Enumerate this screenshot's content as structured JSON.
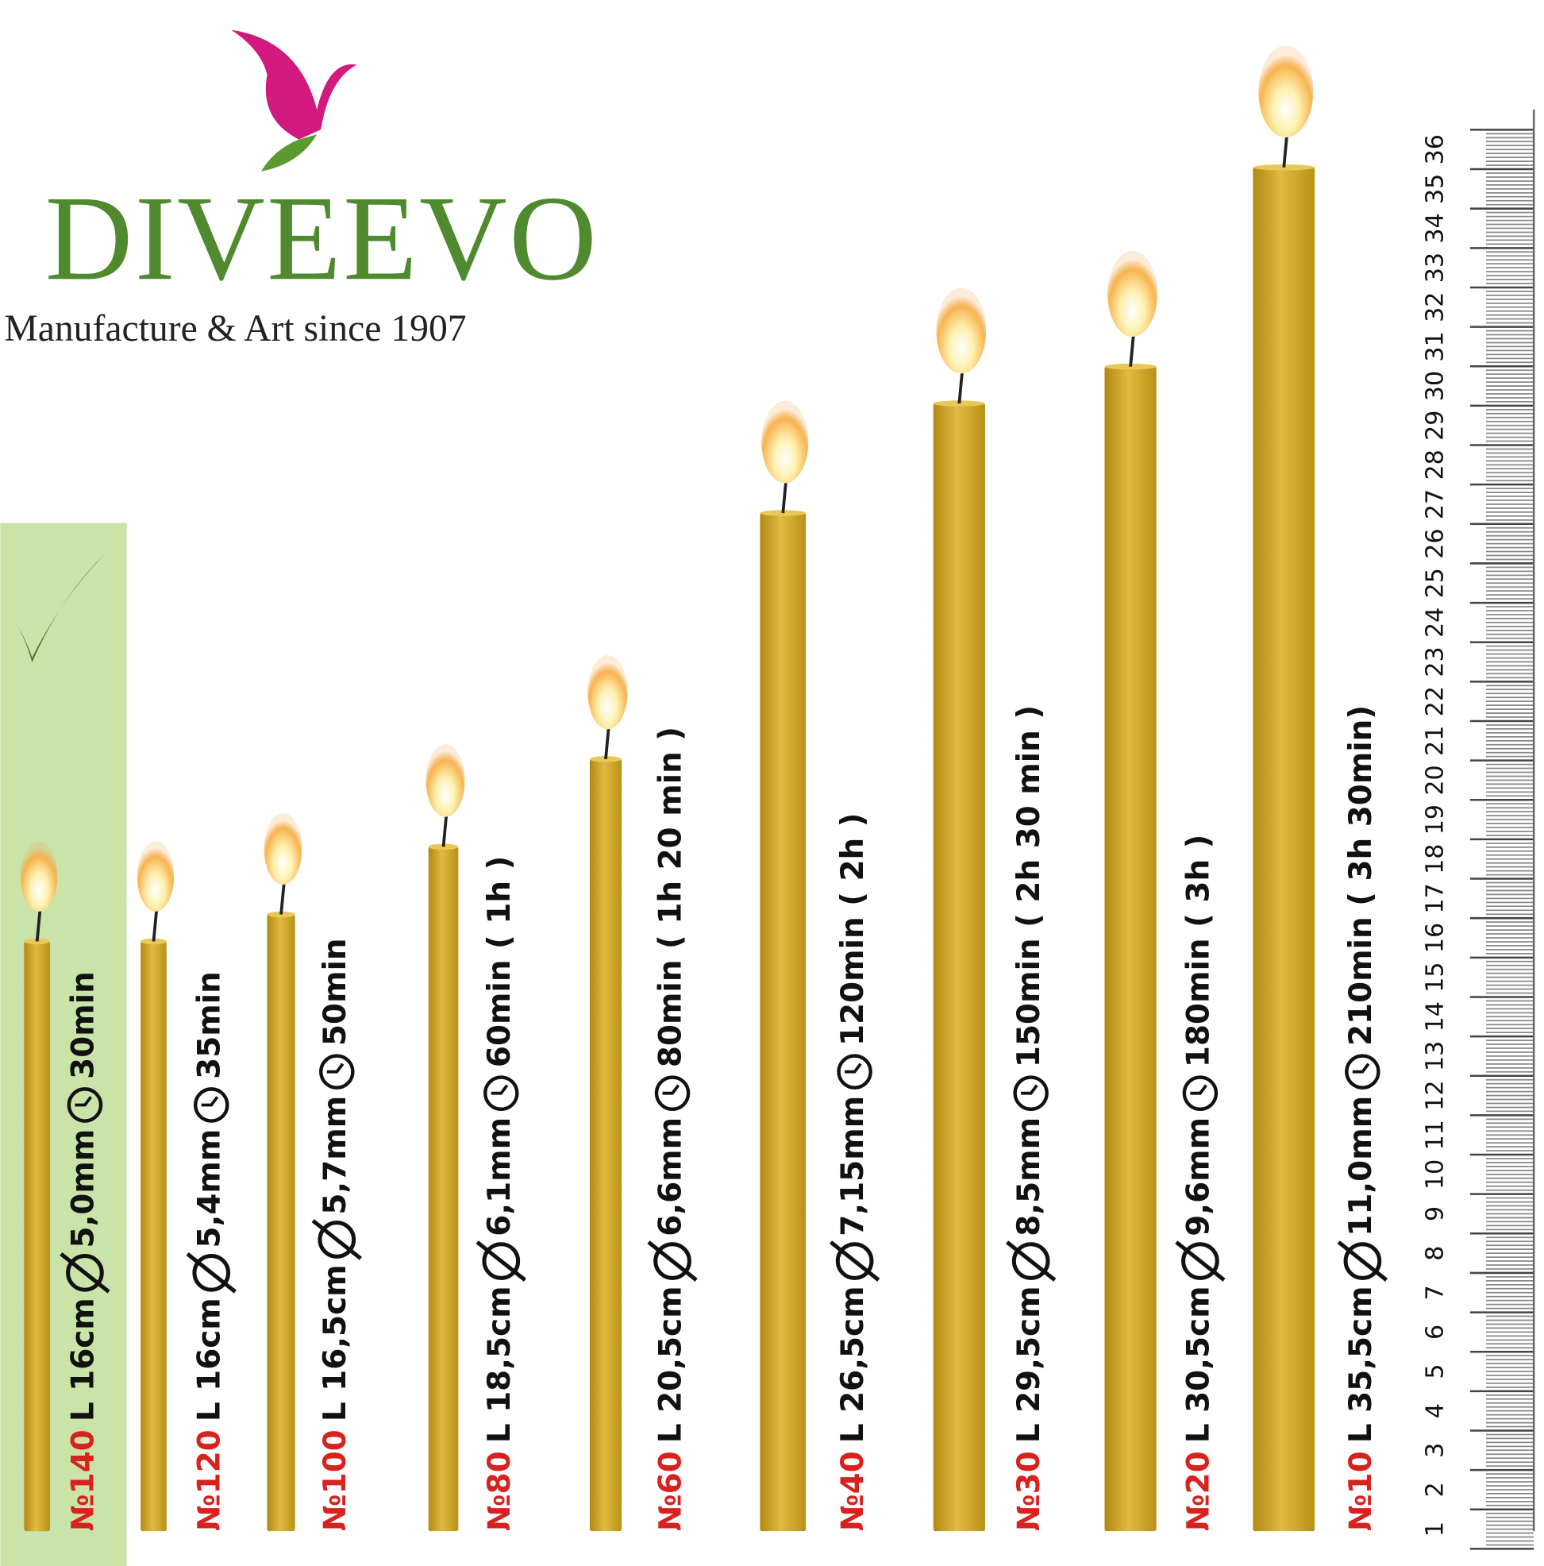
{
  "logo": {
    "brand": "DIVEEVO",
    "tagline": "Manufacture & Art since 1907"
  },
  "candles": [
    {
      "number": "№140",
      "length": "L 16cm",
      "diameter": "5,0mm",
      "burn_time": "30min"
    },
    {
      "number": "№120",
      "length": "L 16cm",
      "diameter": "5,4mm",
      "burn_time": "35min"
    },
    {
      "number": "№100",
      "length": "L 16,5cm",
      "diameter": "5,7mm",
      "burn_time": "50min"
    },
    {
      "number": "№80",
      "length": "L 18,5cm",
      "diameter": "6,1mm",
      "burn_time": "60min ( 1h )"
    },
    {
      "number": "№60",
      "length": "L 20,5cm",
      "diameter": "6,6mm",
      "burn_time": "80min ( 1h 20 min )"
    },
    {
      "number": "№40",
      "length": "L 26,5cm",
      "diameter": "7,15mm",
      "burn_time": "120min ( 2h )"
    },
    {
      "number": "№30",
      "length": "L 29,5cm",
      "diameter": "8,5mm",
      "burn_time": "150min ( 2h 30 min )"
    },
    {
      "number": "№20",
      "length": "L 30,5cm",
      "diameter": "9,6mm",
      "burn_time": "180min ( 3h )"
    },
    {
      "number": "№10",
      "length": "L 35,5cm",
      "diameter": "11,0mm",
      "burn_time": "210min ( 3h 30min)"
    }
  ],
  "ruler": {
    "labels": [
      "1",
      "2",
      "3",
      "4",
      "5",
      "6",
      "7",
      "8",
      "9",
      "10",
      "11",
      "12",
      "13",
      "14",
      "15",
      "16",
      "17",
      "18",
      "19",
      "20",
      "21",
      "22",
      "23",
      "24",
      "25",
      "26",
      "27",
      "28",
      "29",
      "30",
      "31",
      "32",
      "33",
      "34",
      "35",
      "36"
    ]
  }
}
